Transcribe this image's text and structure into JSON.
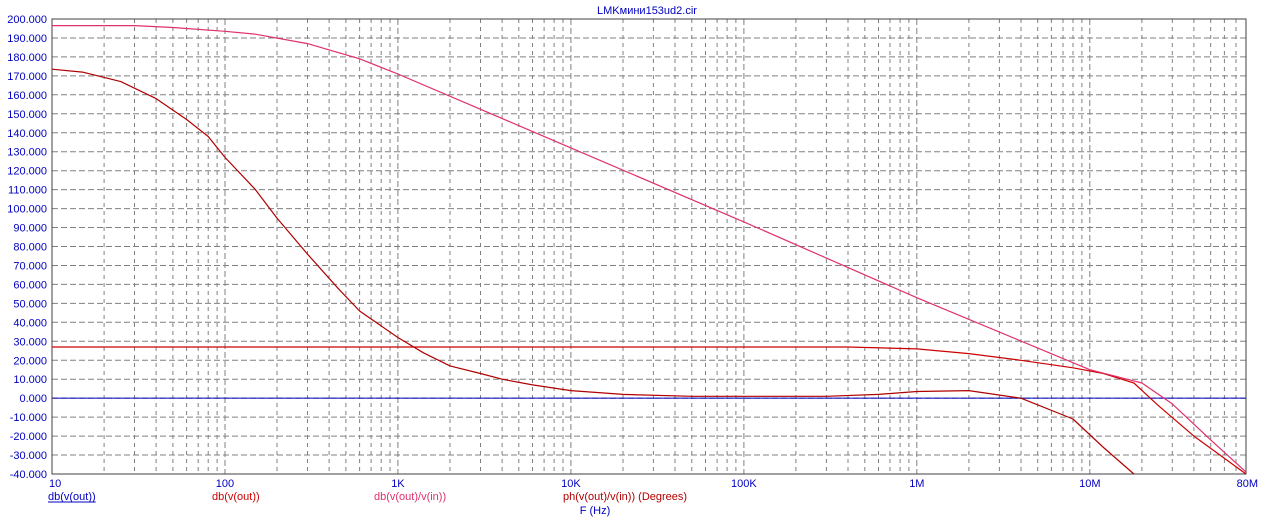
{
  "chart_data": {
    "type": "line",
    "title": "LMKмини153ud2.cir",
    "xlabel": "F (Hz)",
    "x_scale": "log",
    "xlim": [
      10,
      80000000
    ],
    "ylim": [
      -40,
      200
    ],
    "grid": true,
    "x_ticks": [
      {
        "value": 10,
        "label": "10"
      },
      {
        "value": 100,
        "label": "100"
      },
      {
        "value": 1000,
        "label": "1K"
      },
      {
        "value": 10000,
        "label": "10K"
      },
      {
        "value": 100000,
        "label": "100K"
      },
      {
        "value": 1000000,
        "label": "1M"
      },
      {
        "value": 10000000,
        "label": "10M"
      },
      {
        "value": 80000000,
        "label": "80M"
      }
    ],
    "y_ticks": [
      -40,
      -30,
      -20,
      -10,
      0,
      10,
      20,
      30,
      40,
      50,
      60,
      70,
      80,
      90,
      100,
      110,
      120,
      130,
      140,
      150,
      160,
      170,
      180,
      190,
      200
    ],
    "y_tick_labels": [
      "-40.000",
      "-30.000",
      "-20.000",
      "-10.000",
      "0.000",
      "10.000",
      "20.000",
      "30.000",
      "40.000",
      "50.000",
      "60.000",
      "70.000",
      "80.000",
      "90.000",
      "100.000",
      "110.000",
      "120.000",
      "130.000",
      "140.000",
      "150.000",
      "160.000",
      "170.000",
      "180.000",
      "190.000",
      "200.000"
    ],
    "zero_line_color": "#0000c0",
    "series": [
      {
        "name": "db(v(out))",
        "color": "#0000c0",
        "legend_underline": true,
        "points": []
      },
      {
        "name": "db(v(out))",
        "color": "#cc0000",
        "points": [
          [
            10,
            27
          ],
          [
            100,
            27
          ],
          [
            1000,
            27
          ],
          [
            10000,
            27
          ],
          [
            100000,
            27
          ],
          [
            400000,
            27
          ],
          [
            1000000,
            26
          ],
          [
            2000000,
            23.5
          ],
          [
            4000000,
            20
          ],
          [
            8000000,
            16
          ],
          [
            12000000,
            13
          ],
          [
            18000000,
            8
          ],
          [
            25000000,
            -4
          ],
          [
            40000000,
            -20
          ],
          [
            80000000,
            -40
          ]
        ]
      },
      {
        "name": "db(v(out)/v(in))",
        "color": "#e0306a",
        "points": [
          [
            10,
            196.5
          ],
          [
            30,
            196.5
          ],
          [
            50,
            195.5
          ],
          [
            100,
            193.5
          ],
          [
            150,
            192
          ],
          [
            300,
            187
          ],
          [
            600,
            179
          ],
          [
            1000,
            171
          ],
          [
            10000,
            132
          ],
          [
            100000,
            93
          ],
          [
            1000000,
            53
          ],
          [
            10000000,
            15
          ],
          [
            20000000,
            8
          ],
          [
            30000000,
            -3
          ],
          [
            50000000,
            -22
          ],
          [
            80000000,
            -39
          ]
        ]
      },
      {
        "name": "ph(v(out)/v(in)) (Degrees)",
        "color": "#b00000",
        "points": [
          [
            10,
            173.5
          ],
          [
            15,
            172
          ],
          [
            25,
            167
          ],
          [
            40,
            158
          ],
          [
            60,
            147
          ],
          [
            80,
            138
          ],
          [
            100,
            127
          ],
          [
            150,
            110
          ],
          [
            200,
            95
          ],
          [
            300,
            76
          ],
          [
            450,
            58
          ],
          [
            600,
            46
          ],
          [
            1000,
            32
          ],
          [
            1400,
            24
          ],
          [
            2000,
            17
          ],
          [
            3000,
            13
          ],
          [
            4000,
            10
          ],
          [
            6000,
            7
          ],
          [
            10000,
            4
          ],
          [
            20000,
            2
          ],
          [
            50000,
            1
          ],
          [
            100000,
            1
          ],
          [
            300000,
            1
          ],
          [
            600000,
            2
          ],
          [
            1000000,
            3.5
          ],
          [
            2000000,
            4
          ],
          [
            4000000,
            0
          ],
          [
            8000000,
            -11
          ],
          [
            12000000,
            -26
          ],
          [
            18000000,
            -40
          ]
        ]
      }
    ]
  }
}
